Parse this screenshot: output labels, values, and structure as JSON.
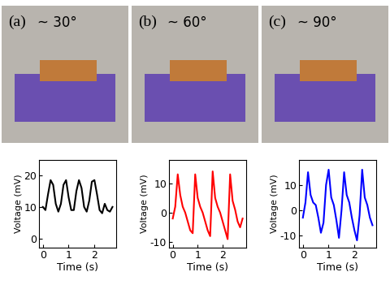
{
  "chart_data": [
    {
      "type": "line",
      "title": "~ 30°",
      "annotations": [
        "(a)"
      ],
      "x_label": "Time (s)",
      "y_label": "Voltage (mV)",
      "x": [
        0,
        0.1,
        0.2,
        0.3,
        0.4,
        0.5,
        0.6,
        0.7,
        0.8,
        0.9,
        1.0,
        1.1,
        1.2,
        1.3,
        1.4,
        1.5,
        1.6,
        1.7,
        1.8,
        1.9,
        2.0,
        2.1,
        2.2,
        2.3,
        2.4,
        2.5,
        2.6,
        2.7
      ],
      "series": [
        {
          "name": "~ 30°",
          "color": "#000000",
          "values": [
            10,
            9,
            14,
            18.5,
            17,
            11,
            8.5,
            11,
            17,
            18.5,
            13,
            9,
            9,
            15,
            18.5,
            16,
            10,
            8.5,
            12,
            18,
            18.5,
            14,
            9,
            8,
            11,
            9,
            8.5,
            10
          ]
        }
      ],
      "xlim": [
        -0.15,
        2.85
      ],
      "xticks": [
        0,
        1,
        2
      ],
      "ylim": [
        -3,
        25
      ],
      "yticks": [
        0,
        10,
        20
      ]
    },
    {
      "type": "line",
      "title": "~ 60°",
      "annotations": [
        "(b)"
      ],
      "x_label": "Time (s)",
      "y_label": "Voltage (mV)",
      "x": [
        0,
        0.1,
        0.2,
        0.3,
        0.4,
        0.5,
        0.6,
        0.7,
        0.8,
        0.9,
        1.0,
        1.1,
        1.2,
        1.3,
        1.4,
        1.5,
        1.6,
        1.7,
        1.8,
        1.9,
        2.0,
        2.1,
        2.2,
        2.3,
        2.4,
        2.5,
        2.6,
        2.7,
        2.8
      ],
      "series": [
        {
          "name": "~ 60°",
          "color": "#ff0000",
          "values": [
            -2,
            2,
            13,
            6,
            2,
            0,
            -3,
            -6,
            -7,
            13,
            5,
            2,
            0,
            -3,
            -6,
            -8,
            14,
            5,
            2,
            0,
            -3,
            -6,
            -9,
            13,
            4,
            1,
            -3,
            -5,
            -2
          ]
        }
      ],
      "xlim": [
        -0.15,
        2.95
      ],
      "xticks": [
        0,
        1,
        2
      ],
      "ylim": [
        -12,
        18
      ],
      "yticks": [
        -10,
        0,
        10
      ]
    },
    {
      "type": "line",
      "title": "~ 90°",
      "annotations": [
        "(c)"
      ],
      "x_label": "Time (s)",
      "y_label": "Voltage (mV)",
      "x": [
        0,
        0.1,
        0.2,
        0.3,
        0.4,
        0.5,
        0.6,
        0.7,
        0.8,
        0.9,
        1.0,
        1.1,
        1.2,
        1.3,
        1.4,
        1.5,
        1.6,
        1.7,
        1.8,
        1.9,
        2.0,
        2.1,
        2.2,
        2.3,
        2.4,
        2.5,
        2.6,
        2.7
      ],
      "series": [
        {
          "name": "~ 90°",
          "color": "#0000ff",
          "values": [
            -3,
            3,
            15,
            6,
            3,
            2,
            -3,
            -9,
            -5,
            10,
            16,
            5,
            2,
            -4,
            -11,
            0,
            15,
            6,
            3,
            -3,
            -8,
            -12,
            -2,
            16,
            5,
            2,
            -3,
            -6
          ]
        }
      ],
      "xlim": [
        -0.15,
        2.85
      ],
      "xticks": [
        0,
        1,
        2
      ],
      "ylim": [
        -15,
        20
      ],
      "yticks": [
        -10,
        0,
        10
      ]
    }
  ]
}
